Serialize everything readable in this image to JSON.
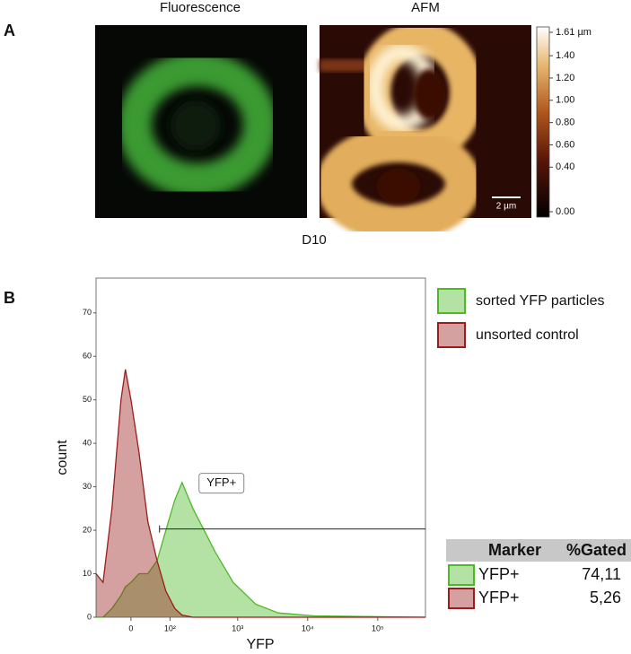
{
  "panel_a": {
    "label": "A",
    "images": [
      {
        "title": "Fluorescence"
      },
      {
        "title": "AFM",
        "scale_bar": "2 µm"
      }
    ],
    "colorbar": {
      "lim": [
        0,
        1.61
      ],
      "ticks": [
        {
          "value": 1.61,
          "label": "1.61 µm"
        },
        {
          "value": 1.4,
          "label": "1.40"
        },
        {
          "value": 1.2,
          "label": "1.20"
        },
        {
          "value": 1.0,
          "label": "1.00"
        },
        {
          "value": 0.8,
          "label": "0.80"
        },
        {
          "value": 0.6,
          "label": "0.60"
        },
        {
          "value": 0.4,
          "label": "0.40"
        },
        {
          "value": 0,
          "label": "0.00"
        }
      ]
    },
    "caption": "D10"
  },
  "panel_b_label": "B",
  "chart_data": {
    "type": "area",
    "xlabel": "YFP",
    "ylabel": "count",
    "x": [
      -85,
      -63,
      -40,
      -20,
      -11,
      0,
      16,
      35,
      58,
      85,
      120,
      155,
      226,
      306,
      477,
      864,
      1812,
      3790,
      12300,
      480000
    ],
    "series": [
      {
        "name": "sorted YFP particles",
        "color": "#4cba25",
        "values": [
          0,
          0,
          2,
          5,
          7,
          8,
          10,
          10,
          13,
          20,
          27,
          31,
          25,
          21,
          15,
          8,
          3,
          1,
          0.3,
          0
        ]
      },
      {
        "name": "unsorted control",
        "color": "#9b1c1c",
        "values": [
          10,
          8,
          25,
          50,
          57,
          50,
          38,
          22,
          13,
          6,
          2,
          0.5,
          0,
          0,
          0,
          0,
          0,
          0,
          0,
          0
        ]
      }
    ],
    "xscale": "asinh",
    "xlim": [
      -85,
      480000
    ],
    "xticks": [
      0,
      {
        "value": 100,
        "label": "10²"
      },
      {
        "value": 1000,
        "label": "10³"
      },
      {
        "value": 10000,
        "label": "10⁴"
      },
      {
        "value": 100000,
        "label": "10⁵"
      }
    ],
    "ylim": [
      0,
      78
    ],
    "yticks": [
      0,
      10,
      20,
      30,
      40,
      50,
      60,
      70
    ],
    "legend": "outside right",
    "gate": {
      "label": "YFP+",
      "x": [
        65,
        480000
      ],
      "y": 20.3
    }
  },
  "gated_table": {
    "headers": [
      "Marker",
      "%Gated"
    ],
    "rows": [
      [
        "YFP+",
        "74,11"
      ],
      [
        "YFP+",
        "5,26"
      ]
    ]
  }
}
